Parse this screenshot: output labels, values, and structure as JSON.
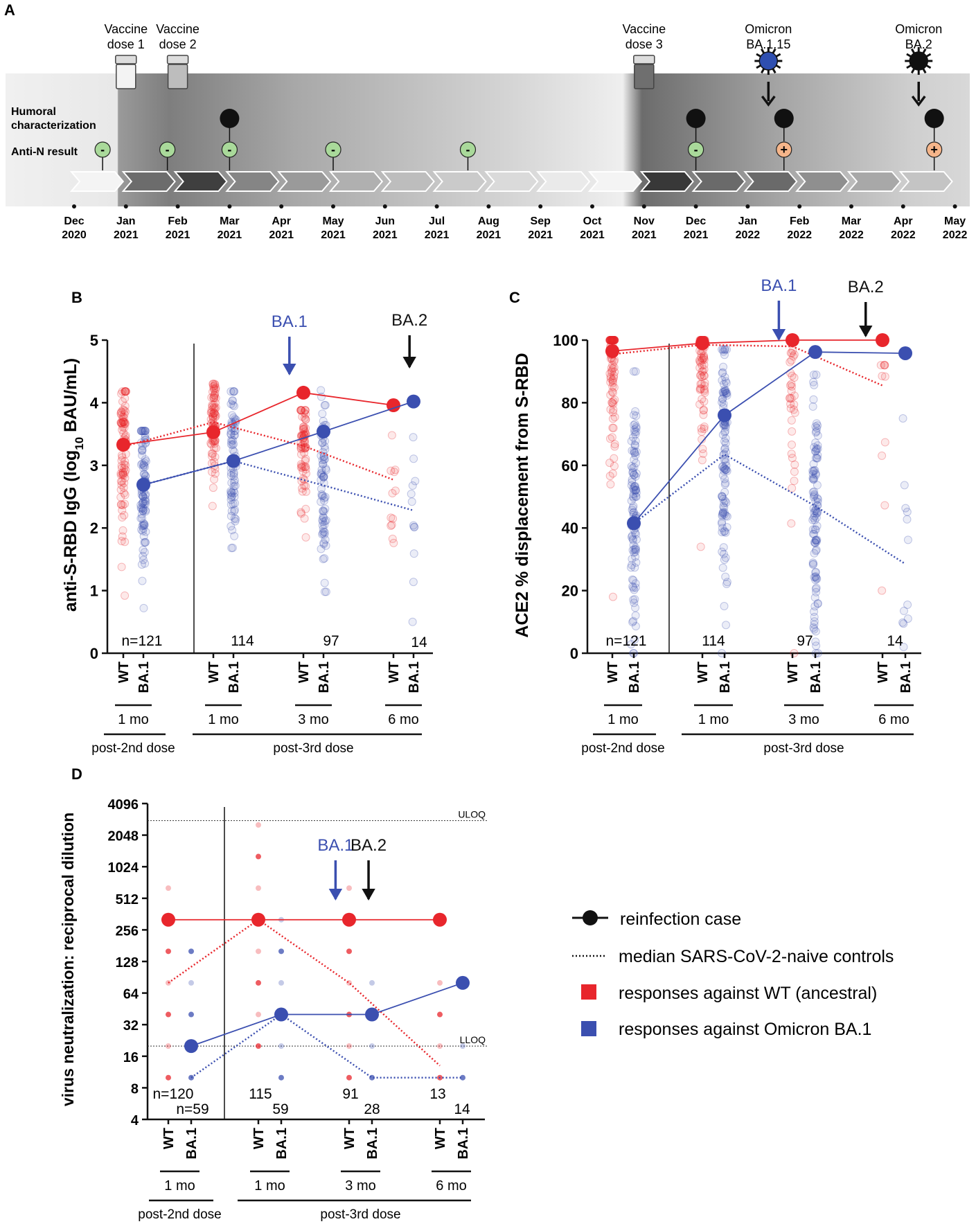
{
  "panel_labels": {
    "a": "A",
    "b": "B",
    "c": "C",
    "d": "D"
  },
  "timeline": {
    "events": [
      {
        "month": 1,
        "line1": "Vaccine",
        "line2": "dose 1",
        "icon": "vial-icon",
        "color": "#f3f3f3"
      },
      {
        "month": 2,
        "line1": "Vaccine",
        "line2": "dose 2",
        "icon": "vial-icon",
        "color": "#bdbdbd"
      },
      {
        "month": 11,
        "line1": "Vaccine",
        "line2": "dose 3",
        "icon": "vial-icon",
        "color": "#6f6f6f"
      },
      {
        "month": 13.4,
        "line1": "Omicron",
        "line2": "BA.1.15",
        "icon": "virus-icon",
        "color": "#2f4fb0"
      },
      {
        "month": 16.3,
        "line1": "Omicron",
        "line2": "BA.2",
        "icon": "virus-icon",
        "color": "#111111"
      }
    ],
    "row_labels": {
      "humoral_1": "Humoral",
      "humoral_2": "characterization",
      "antin": "Anti-N result"
    },
    "humoral_samples": [
      3,
      12,
      13.7,
      16.6
    ],
    "antin_results": [
      {
        "month": 0.55,
        "result": "-"
      },
      {
        "month": 1.8,
        "result": "-"
      },
      {
        "month": 3,
        "result": "-"
      },
      {
        "month": 5,
        "result": "-"
      },
      {
        "month": 7.6,
        "result": "-"
      },
      {
        "month": 12,
        "result": "-"
      },
      {
        "month": 13.7,
        "result": "+"
      },
      {
        "month": 16.6,
        "result": "+"
      }
    ],
    "months": [
      [
        "Dec",
        "2020"
      ],
      [
        "Jan",
        "2021"
      ],
      [
        "Feb",
        "2021"
      ],
      [
        "Mar",
        "2021"
      ],
      [
        "Apr",
        "2021"
      ],
      [
        "May",
        "2021"
      ],
      [
        "Jun",
        "2021"
      ],
      [
        "Jul",
        "2021"
      ],
      [
        "Aug",
        "2021"
      ],
      [
        "Sep",
        "2021"
      ],
      [
        "Oct",
        "2021"
      ],
      [
        "Nov",
        "2021"
      ],
      [
        "Dec",
        "2021"
      ],
      [
        "Jan",
        "2022"
      ],
      [
        "Feb",
        "2022"
      ],
      [
        "Mar",
        "2022"
      ],
      [
        "Apr",
        "2022"
      ],
      [
        "May",
        "2022"
      ]
    ],
    "colors": {
      "negative": "#a9d99a",
      "positive": "#f5b58a"
    }
  },
  "groups": {
    "category_wt": "WT",
    "category_ba1": "BA.1",
    "timepoints": [
      "1 mo",
      "1 mo",
      "3 mo",
      "6 mo"
    ],
    "post2": "post-2nd dose",
    "post3": "post-3rd dose"
  },
  "arrows": {
    "ba1": "BA.1",
    "ba2": "BA.2"
  },
  "colors": {
    "wt": "#e8262c",
    "ba1": "#3b4fb0",
    "black": "#111111"
  },
  "chart_data": [
    {
      "type": "scatter",
      "title": "B",
      "ylabel_pre": "anti-S-RBD IgG (log",
      "ylabel_sub": "10",
      "ylabel_post": " BAU/mL)",
      "ylim": [
        0,
        5
      ],
      "yticks": [
        0,
        1,
        2,
        3,
        4,
        5
      ],
      "categories": [
        "WT 1 mo post-2nd",
        "BA.1 1 mo post-2nd",
        "WT 1 mo post-3rd",
        "BA.1 1 mo post-3rd",
        "WT 3 mo post-3rd",
        "BA.1 3 mo post-3rd",
        "WT 6 mo post-3rd",
        "BA.1 6 mo post-3rd"
      ],
      "n_labels": [
        "n=121",
        "114",
        "97",
        "14"
      ],
      "series": [
        {
          "name": "reinfection case WT",
          "values": [
            3.33,
            null,
            3.53,
            null,
            4.16,
            null,
            3.96,
            null
          ]
        },
        {
          "name": "reinfection case BA.1",
          "values": [
            null,
            2.69,
            null,
            3.07,
            null,
            3.54,
            null,
            4.02
          ]
        },
        {
          "name": "median naive WT",
          "values": [
            3.3,
            null,
            3.69,
            null,
            3.31,
            null,
            2.77,
            null
          ]
        },
        {
          "name": "median naive BA.1",
          "values": [
            null,
            2.69,
            null,
            3.07,
            null,
            2.68,
            null,
            2.28
          ]
        }
      ],
      "distributions": {
        "lo": [
          0.92,
          0.72,
          2.35,
          1.68,
          1.85,
          0.98,
          1.76,
          0.5
        ],
        "hi": [
          4.18,
          3.55,
          4.3,
          4.18,
          3.88,
          4.2,
          3.48,
          3.45
        ],
        "center": [
          3.3,
          2.6,
          3.7,
          3.0,
          3.3,
          2.6,
          2.7,
          2.3
        ],
        "count": [
          95,
          95,
          85,
          85,
          75,
          75,
          12,
          12
        ]
      },
      "arrow_ba1_at": 3.8,
      "arrow_ba2_at": 6.8
    },
    {
      "type": "scatter",
      "title": "C",
      "ylabel": "ACE2 % displacement from S-RBD",
      "ylim": [
        0,
        100
      ],
      "yticks": [
        0,
        20,
        40,
        60,
        80,
        100
      ],
      "categories": [
        "WT 1 mo post-2nd",
        "BA.1 1 mo post-2nd",
        "WT 1 mo post-3rd",
        "BA.1 1 mo post-3rd",
        "WT 3 mo post-3rd",
        "BA.1 3 mo post-3rd",
        "WT 6 mo post-3rd",
        "BA.1 6 mo post-3rd"
      ],
      "n_labels": [
        "n=121",
        "114",
        "97",
        "14"
      ],
      "series": [
        {
          "name": "reinfection case WT",
          "values": [
            96.5,
            null,
            99,
            null,
            100,
            null,
            100,
            null
          ]
        },
        {
          "name": "reinfection case BA.1",
          "values": [
            null,
            41.5,
            null,
            76,
            null,
            96.2,
            null,
            95.8
          ]
        },
        {
          "name": "median naive WT",
          "values": [
            95.5,
            null,
            98.5,
            null,
            98,
            null,
            85.5,
            null
          ]
        },
        {
          "name": "median naive BA.1",
          "values": [
            null,
            41.5,
            null,
            63.5,
            null,
            47,
            null,
            28.5
          ]
        }
      ],
      "distributions": {
        "lo": [
          18,
          0,
          34,
          0,
          0,
          0,
          20,
          2
        ],
        "hi": [
          100,
          90,
          100,
          97,
          100,
          96,
          92,
          75
        ],
        "center": [
          93,
          45,
          97,
          62,
          96,
          45,
          80,
          30
        ],
        "count": [
          95,
          110,
          80,
          110,
          60,
          110,
          10,
          12
        ]
      },
      "arrow_ba1_at": 3.8,
      "arrow_ba2_at": 5.75
    },
    {
      "type": "scatter",
      "title": "D",
      "ylabel": "virus neutralization: reciprocal dilution",
      "yscale": "log2",
      "ylim": [
        4,
        4096
      ],
      "yticks": [
        4,
        8,
        16,
        32,
        64,
        128,
        256,
        512,
        1024,
        2048,
        4096
      ],
      "refs": [
        {
          "label": "ULOQ",
          "value": 2816
        },
        {
          "label": "LLOQ",
          "value": 20
        }
      ],
      "categories": [
        "WT 1 mo post-2nd",
        "BA.1 1 mo post-2nd",
        "WT 1 mo post-3rd",
        "BA.1 1 mo post-3rd",
        "WT 3 mo post-3rd",
        "BA.1 3 mo post-3rd",
        "WT 6 mo post-3rd",
        "BA.1 6 mo post-3rd"
      ],
      "n_labels": [
        "n=120",
        "n=59",
        "115",
        "59",
        "91",
        "28",
        "13",
        "14"
      ],
      "series": [
        {
          "name": "reinfection case WT",
          "values": [
            320,
            null,
            320,
            null,
            320,
            null,
            320,
            null
          ]
        },
        {
          "name": "reinfection case BA.1",
          "values": [
            null,
            20,
            null,
            40,
            null,
            40,
            null,
            80
          ]
        },
        {
          "name": "median naive WT",
          "values": [
            80,
            null,
            320,
            null,
            80,
            null,
            13,
            null
          ]
        },
        {
          "name": "median naive BA.1",
          "values": [
            null,
            10,
            null,
            40,
            null,
            10,
            null,
            10
          ]
        }
      ],
      "dot_levels": [
        [
          10,
          20,
          40,
          80,
          160,
          640
        ],
        [
          10,
          20,
          40,
          80,
          160
        ],
        [
          20,
          40,
          80,
          160,
          320,
          640,
          1280,
          2560
        ],
        [
          10,
          20,
          40,
          80,
          160,
          320
        ],
        [
          10,
          20,
          40,
          80,
          160,
          640
        ],
        [
          10,
          20,
          40,
          80
        ],
        [
          10,
          20,
          40,
          80
        ],
        [
          10,
          20,
          80
        ]
      ],
      "arrow_ba1_at": 3.8,
      "arrow_ba2_at": 4.85
    }
  ],
  "legend": {
    "reinfection": "reinfection case",
    "median": "median SARS-CoV-2-naive controls",
    "wt": "responses against WT (ancestral)",
    "ba1": "responses against Omicron BA.1"
  }
}
